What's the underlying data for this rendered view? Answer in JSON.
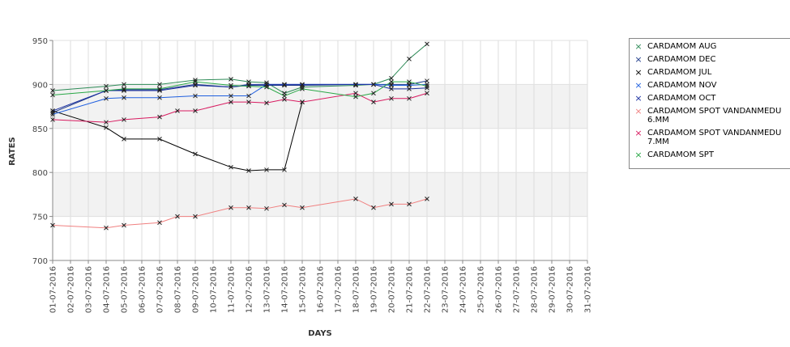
{
  "chart_data": {
    "type": "line",
    "xlabel": "DAYS",
    "ylabel": "RATES",
    "ylim": [
      700,
      950
    ],
    "yticks": [
      700,
      750,
      800,
      850,
      900,
      950
    ],
    "categories": [
      "01-07-2016",
      "02-07-2016",
      "03-07-2016",
      "04-07-2016",
      "05-07-2016",
      "06-07-2016",
      "07-07-2016",
      "08-07-2016",
      "09-07-2016",
      "10-07-2016",
      "11-07-2016",
      "12-07-2016",
      "13-07-2016",
      "14-07-2016",
      "15-07-2016",
      "16-07-2016",
      "17-07-2016",
      "18-07-2016",
      "19-07-2016",
      "20-07-2016",
      "21-07-2016",
      "22-07-2016",
      "23-07-2016",
      "24-07-2016",
      "25-07-2016",
      "26-07-2016",
      "27-07-2016",
      "28-07-2016",
      "29-07-2016",
      "30-07-2016",
      "31-07-2016"
    ],
    "grid": true,
    "legend": "right",
    "series": [
      {
        "name": "CARDAMOM AUG",
        "color": "#2e8b57",
        "points": [
          [
            1,
            893
          ],
          [
            4,
            898
          ],
          [
            5,
            900
          ],
          [
            7,
            900
          ],
          [
            9,
            905
          ],
          [
            11,
            906
          ],
          [
            12,
            903
          ],
          [
            13,
            902
          ],
          [
            14,
            890
          ],
          [
            15,
            897
          ],
          [
            18,
            899
          ],
          [
            19,
            900
          ],
          [
            20,
            907
          ],
          [
            21,
            929
          ],
          [
            22,
            946
          ]
        ]
      },
      {
        "name": "CARDAMOM DEC",
        "color": "#1e3a8a",
        "points": [
          [
            1,
            868
          ],
          [
            4,
            893
          ],
          [
            5,
            894
          ],
          [
            7,
            894
          ],
          [
            9,
            900
          ],
          [
            11,
            897
          ],
          [
            12,
            899
          ],
          [
            13,
            899
          ],
          [
            14,
            899
          ],
          [
            15,
            899
          ],
          [
            18,
            900
          ],
          [
            19,
            900
          ],
          [
            20,
            900
          ],
          [
            21,
            900
          ],
          [
            22,
            904
          ]
        ]
      },
      {
        "name": "CARDAMOM JUL",
        "color": "#000000",
        "points": [
          [
            1,
            870
          ],
          [
            4,
            851
          ],
          [
            5,
            838
          ],
          [
            7,
            838
          ],
          [
            9,
            821
          ],
          [
            11,
            806
          ],
          [
            12,
            802
          ],
          [
            13,
            803
          ],
          [
            14,
            803
          ],
          [
            15,
            880
          ]
        ]
      },
      {
        "name": "CARDAMOM NOV",
        "color": "#1f5fdf",
        "points": [
          [
            1,
            866
          ],
          [
            4,
            884
          ],
          [
            5,
            885
          ],
          [
            7,
            885
          ],
          [
            9,
            887
          ],
          [
            11,
            887
          ],
          [
            12,
            887
          ],
          [
            13,
            900
          ],
          [
            14,
            900
          ],
          [
            15,
            900
          ],
          [
            18,
            900
          ],
          [
            19,
            900
          ],
          [
            20,
            899
          ],
          [
            21,
            899
          ],
          [
            22,
            900
          ]
        ]
      },
      {
        "name": "CARDAMOM OCT",
        "color": "#1a2fa0",
        "points": [
          [
            1,
            870
          ],
          [
            4,
            893
          ],
          [
            5,
            893
          ],
          [
            7,
            893
          ],
          [
            9,
            899
          ],
          [
            11,
            897
          ],
          [
            12,
            900
          ],
          [
            13,
            900
          ],
          [
            14,
            900
          ],
          [
            15,
            900
          ],
          [
            18,
            900
          ],
          [
            19,
            900
          ],
          [
            20,
            895
          ],
          [
            21,
            895
          ],
          [
            22,
            896
          ]
        ]
      },
      {
        "name": "CARDAMOM SPOT VANDANMEDU\n6.MM",
        "color": "#f08080",
        "points": [
          [
            1,
            740
          ],
          [
            4,
            737
          ],
          [
            5,
            740
          ],
          [
            7,
            743
          ],
          [
            8,
            750
          ],
          [
            9,
            750
          ],
          [
            11,
            760
          ],
          [
            12,
            760
          ],
          [
            13,
            759
          ],
          [
            14,
            763
          ],
          [
            15,
            760
          ],
          [
            18,
            770
          ],
          [
            19,
            760
          ],
          [
            20,
            764
          ],
          [
            21,
            764
          ],
          [
            22,
            770
          ]
        ]
      },
      {
        "name": "CARDAMOM SPOT VANDANMEDU\n7.MM",
        "color": "#d81b60",
        "points": [
          [
            1,
            860
          ],
          [
            4,
            857
          ],
          [
            5,
            860
          ],
          [
            7,
            863
          ],
          [
            8,
            870
          ],
          [
            9,
            870
          ],
          [
            11,
            880
          ],
          [
            12,
            880
          ],
          [
            13,
            879
          ],
          [
            14,
            883
          ],
          [
            15,
            880
          ],
          [
            18,
            890
          ],
          [
            19,
            880
          ],
          [
            20,
            884
          ],
          [
            21,
            884
          ],
          [
            22,
            890
          ]
        ]
      },
      {
        "name": "CARDAMOM SPT",
        "color": "#28a745",
        "points": [
          [
            1,
            888
          ],
          [
            4,
            893
          ],
          [
            5,
            895
          ],
          [
            7,
            895
          ],
          [
            9,
            903
          ],
          [
            11,
            899
          ],
          [
            12,
            898
          ],
          [
            13,
            897
          ],
          [
            14,
            887
          ],
          [
            15,
            895
          ],
          [
            18,
            886
          ],
          [
            19,
            890
          ],
          [
            20,
            903
          ],
          [
            21,
            903
          ],
          [
            22,
            898
          ]
        ]
      }
    ]
  }
}
